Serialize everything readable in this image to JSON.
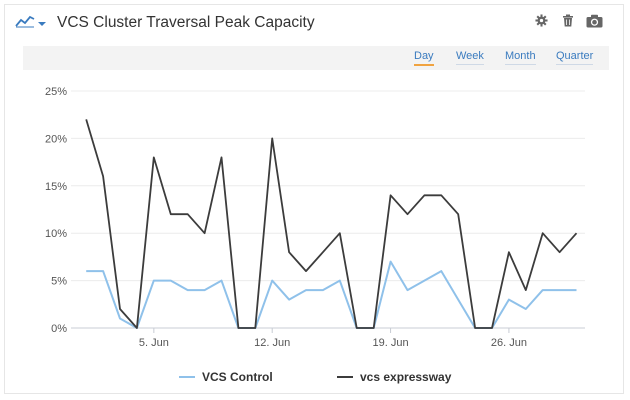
{
  "header": {
    "title": "VCS Cluster Traversal Peak Capacity",
    "chart_type_icon": "line-chart-icon",
    "settings_icon": "gear-icon",
    "delete_icon": "trash-icon",
    "snapshot_icon": "camera-icon"
  },
  "ranges": [
    {
      "label": "Day",
      "active": true
    },
    {
      "label": "Week",
      "active": false
    },
    {
      "label": "Month",
      "active": false
    },
    {
      "label": "Quarter",
      "active": false
    }
  ],
  "colors": {
    "accent": "#3a7bbf",
    "active_underline": "#f0a340",
    "series_control": "#8fc1ea",
    "series_expressway": "#3c3c3c"
  },
  "chart_data": {
    "type": "line",
    "title": "VCS Cluster Traversal Peak Capacity",
    "xlabel": "",
    "ylabel": "",
    "x_start": "2025-06-01",
    "x": [
      1,
      2,
      3,
      4,
      5,
      6,
      7,
      8,
      9,
      10,
      11,
      12,
      13,
      14,
      15,
      16,
      17,
      18,
      19,
      20,
      21,
      22,
      23,
      24,
      25,
      26,
      27,
      28,
      29,
      30
    ],
    "x_tick_labels": [
      "5. Jun",
      "12. Jun",
      "19. Jun",
      "26. Jun"
    ],
    "x_tick_values": [
      5,
      12,
      19,
      26
    ],
    "y_tick_labels": [
      "0%",
      "5%",
      "10%",
      "15%",
      "20%",
      "25%"
    ],
    "ylim": [
      0,
      25
    ],
    "grid": true,
    "legend_position": "bottom",
    "series": [
      {
        "name": "VCS Control",
        "values": [
          6,
          6,
          1,
          0,
          5,
          5,
          4,
          4,
          5,
          0,
          0,
          5,
          3,
          4,
          4,
          5,
          0,
          0,
          7,
          4,
          5,
          6,
          3,
          0,
          0,
          3,
          2,
          4,
          4,
          4
        ]
      },
      {
        "name": "vcs expressway",
        "values": [
          22,
          16,
          2,
          0,
          18,
          12,
          12,
          10,
          18,
          0,
          0,
          20,
          8,
          6,
          8,
          10,
          0,
          0,
          14,
          12,
          14,
          14,
          12,
          0,
          0,
          8,
          4,
          10,
          8,
          10
        ]
      }
    ]
  }
}
